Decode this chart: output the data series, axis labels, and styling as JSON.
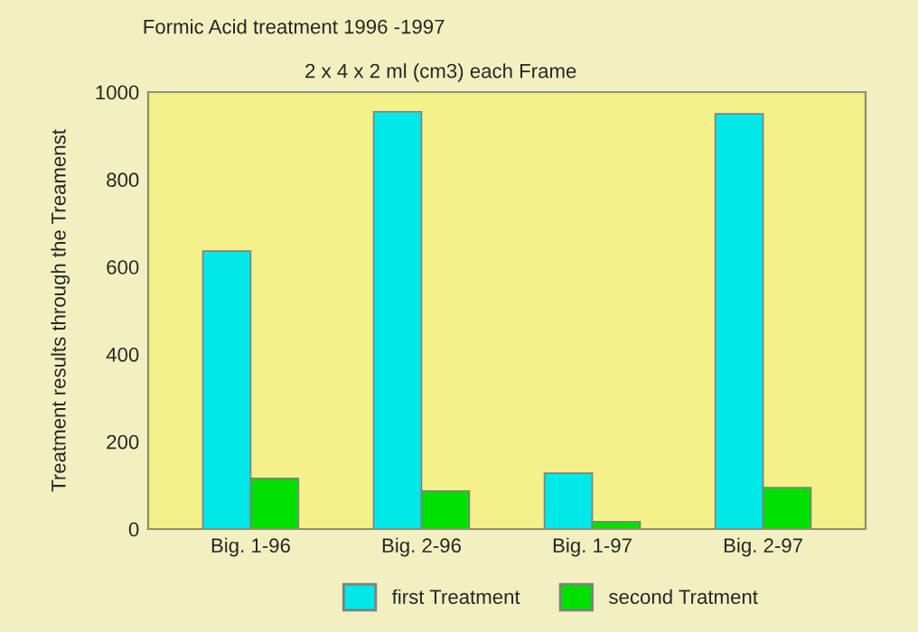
{
  "chart_data": {
    "type": "bar",
    "title": "Formic Acid treatment 1996 -1997",
    "subtitle": "2 x 4 x 2 ml (cm3) each Frame",
    "ylabel": "Treatment results through the Treamenst",
    "categories": [
      "Big. 1-96",
      "Big. 2-96",
      "Big. 1-97",
      "Big. 2-97"
    ],
    "series": [
      {
        "name": "first Treatment",
        "color": "#00e8e8",
        "values": [
          636,
          955,
          128,
          950
        ]
      },
      {
        "name": "second Tratment",
        "color": "#00e000",
        "values": [
          116,
          87,
          17,
          95
        ]
      }
    ],
    "ylim": [
      0,
      1000
    ],
    "yticks": [
      0,
      200,
      400,
      600,
      800,
      1000
    ],
    "grid": false,
    "legend": "bottom"
  }
}
